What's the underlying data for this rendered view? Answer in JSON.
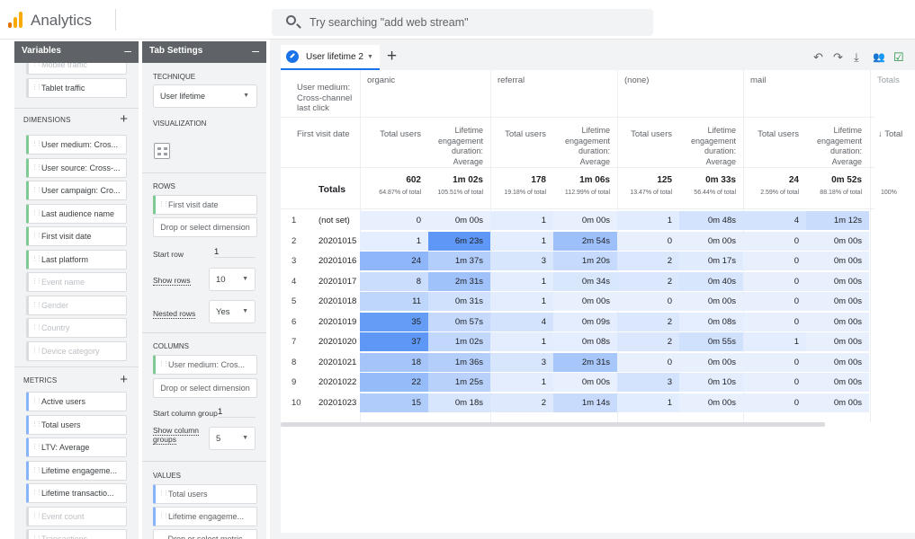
{
  "app": {
    "title": "Analytics",
    "search_placeholder": "Try searching \"add web stream\""
  },
  "variables": {
    "header": "Variables",
    "truncated_top": "Mobile traffic",
    "segment_item": "Tablet traffic",
    "dimensions_label": "DIMENSIONS",
    "dimensions": [
      {
        "label": "User medium: Cros...",
        "active": true
      },
      {
        "label": "User source: Cross-...",
        "active": true
      },
      {
        "label": "User campaign: Cro...",
        "active": true
      },
      {
        "label": "Last audience name",
        "active": true
      },
      {
        "label": "First visit date",
        "active": true
      },
      {
        "label": "Last platform",
        "active": true
      },
      {
        "label": "Event name",
        "active": false
      },
      {
        "label": "Gender",
        "active": false
      },
      {
        "label": "Country",
        "active": false
      },
      {
        "label": "Device category",
        "active": false
      }
    ],
    "metrics_label": "METRICS",
    "metrics": [
      {
        "label": "Active users",
        "active": true
      },
      {
        "label": "Total users",
        "active": true
      },
      {
        "label": "LTV: Average",
        "active": true
      },
      {
        "label": "Lifetime engageme...",
        "active": true
      },
      {
        "label": "Lifetime transactio...",
        "active": true
      },
      {
        "label": "Event count",
        "active": false
      },
      {
        "label": "Transactions",
        "active": false
      }
    ]
  },
  "tab_settings": {
    "header": "Tab Settings",
    "technique_label": "TECHNIQUE",
    "technique_value": "User lifetime",
    "visualization_label": "VISUALIZATION",
    "rows_label": "ROWS",
    "rows_chip": "First visit date",
    "rows_drop": "Drop or select dimension",
    "start_row_label": "Start row",
    "start_row_value": "1",
    "show_rows_label": "Show rows",
    "show_rows_value": "10",
    "nested_rows_label": "Nested rows",
    "nested_rows_value": "Yes",
    "columns_label": "COLUMNS",
    "columns_chip": "User medium: Cros...",
    "columns_drop": "Drop or select dimension",
    "start_col_label": "Start column group",
    "start_col_value": "1",
    "show_col_label_1": "Show column",
    "show_col_label_2": "groups",
    "show_col_value": "5",
    "values_label": "VALUES",
    "values_chips": [
      "Total users",
      "Lifetime engageme..."
    ],
    "values_drop": "Drop or select metric"
  },
  "report": {
    "tab_name": "User lifetime 2",
    "col_dimension": "User medium:\nCross-channel\nlast click",
    "row_dimension": "First visit date",
    "groups": [
      "organic",
      "referral",
      "(none)",
      "mail"
    ],
    "group_overflow": "Totals",
    "metric_total_users": "Total users",
    "metric_engagement": "Lifetime\nengagement\nduration:\nAverage",
    "metric_overflow": "↓ Total",
    "totals_label": "Totals",
    "totals": [
      {
        "value": "602",
        "pct": "64.87% of total"
      },
      {
        "value": "1m 02s",
        "pct": "105.51% of total"
      },
      {
        "value": "178",
        "pct": "19.18% of total"
      },
      {
        "value": "1m 06s",
        "pct": "112.99% of total"
      },
      {
        "value": "125",
        "pct": "13.47% of total"
      },
      {
        "value": "0m 33s",
        "pct": "56.44% of total"
      },
      {
        "value": "24",
        "pct": "2.59% of total"
      },
      {
        "value": "0m 52s",
        "pct": "88.18% of total"
      }
    ],
    "totals_overflow": "100%",
    "rows": [
      {
        "n": "1",
        "date": "(not set)",
        "cells": [
          "0",
          "0m 00s",
          "1",
          "0m 00s",
          "1",
          "0m 48s",
          "4",
          "1m 12s"
        ]
      },
      {
        "n": "2",
        "date": "20201015",
        "cells": [
          "1",
          "6m 23s",
          "1",
          "2m 54s",
          "0",
          "0m 00s",
          "0",
          "0m 00s"
        ]
      },
      {
        "n": "3",
        "date": "20201016",
        "cells": [
          "24",
          "1m 37s",
          "3",
          "1m 20s",
          "2",
          "0m 17s",
          "0",
          "0m 00s"
        ]
      },
      {
        "n": "4",
        "date": "20201017",
        "cells": [
          "8",
          "2m 31s",
          "1",
          "0m 34s",
          "2",
          "0m 40s",
          "0",
          "0m 00s"
        ]
      },
      {
        "n": "5",
        "date": "20201018",
        "cells": [
          "11",
          "0m 31s",
          "1",
          "0m 00s",
          "0",
          "0m 00s",
          "0",
          "0m 00s"
        ]
      },
      {
        "n": "6",
        "date": "20201019",
        "cells": [
          "35",
          "0m 57s",
          "4",
          "0m 09s",
          "2",
          "0m 08s",
          "0",
          "0m 00s"
        ]
      },
      {
        "n": "7",
        "date": "20201020",
        "cells": [
          "37",
          "1m 02s",
          "1",
          "0m 08s",
          "2",
          "0m 55s",
          "1",
          "0m 00s"
        ]
      },
      {
        "n": "8",
        "date": "20201021",
        "cells": [
          "18",
          "1m 36s",
          "3",
          "2m 31s",
          "0",
          "0m 00s",
          "0",
          "0m 00s"
        ]
      },
      {
        "n": "9",
        "date": "20201022",
        "cells": [
          "22",
          "1m 25s",
          "1",
          "0m 00s",
          "3",
          "0m 10s",
          "0",
          "0m 00s"
        ]
      },
      {
        "n": "10",
        "date": "20201023",
        "cells": [
          "15",
          "0m 18s",
          "2",
          "1m 14s",
          "1",
          "0m 00s",
          "0",
          "0m 00s"
        ]
      }
    ],
    "heat_light": "#e8f0fe",
    "heat_dark": "#5e97f6"
  }
}
